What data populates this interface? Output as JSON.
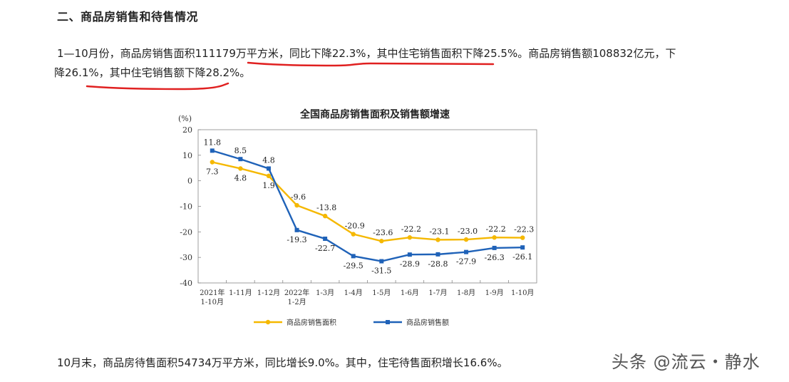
{
  "heading": "二、商品房销售和待售情况",
  "paragraph": {
    "line1": "1—10月份，商品房销售面积111179万平方米，同比下降22.3%，其中住宅销售面积下降25.5%。商品房销售额108832亿元，下",
    "line2": "降26.1%，其中住宅销售额下降28.2%。"
  },
  "bottom_paragraph": "10月末，商品房待售面积54734万平方米，同比增长9.0%。其中，住宅待售面积增长16.6%。",
  "watermark": "头条 @流云・静水",
  "colors": {
    "area": "#f5b800",
    "sales": "#1f62b8",
    "underline": "#e02020"
  },
  "chart_data": {
    "type": "line",
    "title": "全国商品房销售面积及销售额增速",
    "ylabel": "(%)",
    "ylim": [
      -40,
      20
    ],
    "yticks": [
      "20",
      "10",
      "0",
      "-10",
      "-20",
      "-30",
      "-40"
    ],
    "categories": [
      [
        "2021年",
        "1-10月"
      ],
      [
        "1-11月"
      ],
      [
        "1-12月"
      ],
      [
        "2022年",
        "1-2月"
      ],
      [
        "1-3月"
      ],
      [
        "1-4月"
      ],
      [
        "1-5月"
      ],
      [
        "1-6月"
      ],
      [
        "1-7月"
      ],
      [
        "1-8月"
      ],
      [
        "1-9月"
      ],
      [
        "1-10月"
      ]
    ],
    "series": [
      {
        "name": "商品房销售面积",
        "values": [
          7.3,
          4.8,
          1.9,
          -9.6,
          -13.8,
          -20.9,
          -23.6,
          -22.2,
          -23.1,
          -23.0,
          -22.2,
          -22.3
        ]
      },
      {
        "name": "商品房销售额",
        "values": [
          11.8,
          8.5,
          4.8,
          -19.3,
          -22.7,
          -29.5,
          -31.5,
          -28.9,
          -28.8,
          -27.9,
          -26.3,
          -26.1
        ]
      }
    ],
    "value_labels": [
      [
        "7.3",
        "4.8",
        "1.9",
        "-9.6",
        "-13.8",
        "-20.9",
        "-23.6",
        "-22.2",
        "-23.1",
        "-23.0",
        "-22.2",
        "-22.3"
      ],
      [
        "11.8",
        "8.5",
        "4.8",
        "-19.3",
        "-22.7",
        "-29.5",
        "-31.5",
        "-28.9",
        "-28.8",
        "-27.9",
        "-26.3",
        "-26.1"
      ]
    ],
    "grid": false,
    "legend_position": "bottom"
  }
}
